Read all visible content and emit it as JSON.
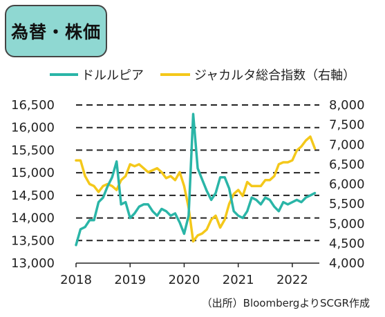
{
  "title": "為替・株価",
  "source": "（出所）BloombergよりSCGR作成",
  "colors": {
    "usdidr": "#2ab5a7",
    "jci": "#f4c81a",
    "grid": "#222222",
    "title_bg": "#8fd8d2"
  },
  "chart_data": {
    "type": "line",
    "x_ticks": [
      "2018",
      "2019",
      "2020",
      "2021",
      "2022"
    ],
    "left_axis": {
      "ylim": [
        13000,
        16500
      ],
      "ticks": [
        "13,000",
        "13,500",
        "14,000",
        "14,500",
        "15,000",
        "15,500",
        "16,000",
        "16,500"
      ]
    },
    "right_axis": {
      "ylim": [
        4000,
        8000
      ],
      "ticks": [
        "4,000",
        "4,500",
        "5,000",
        "5,500",
        "6,000",
        "6,500",
        "7,000",
        "7,500",
        "8,000"
      ]
    },
    "grid": "dashed horizontal",
    "legend": "top",
    "series": [
      {
        "name": "ドルルピア",
        "axis": "left",
        "x": [
          2018.0,
          2018.083,
          2018.167,
          2018.25,
          2018.333,
          2018.417,
          2018.5,
          2018.583,
          2018.667,
          2018.75,
          2018.833,
          2018.917,
          2019.0,
          2019.083,
          2019.167,
          2019.25,
          2019.333,
          2019.417,
          2019.5,
          2019.583,
          2019.667,
          2019.75,
          2019.833,
          2019.917,
          2020.0,
          2020.083,
          2020.167,
          2020.25,
          2020.333,
          2020.417,
          2020.5,
          2020.583,
          2020.667,
          2020.75,
          2020.833,
          2020.917,
          2021.0,
          2021.083,
          2021.167,
          2021.25,
          2021.333,
          2021.417,
          2021.5,
          2021.583,
          2021.667,
          2021.75,
          2021.833,
          2021.917,
          2022.0,
          2022.083,
          2022.167,
          2022.25,
          2022.333,
          2022.417
        ],
        "values": [
          13400,
          13750,
          13800,
          13950,
          13950,
          14350,
          14450,
          14700,
          14900,
          15250,
          14300,
          14350,
          14000,
          14100,
          14250,
          14300,
          14300,
          14150,
          14050,
          14200,
          14150,
          14050,
          14100,
          13900,
          13650,
          14050,
          16300,
          15100,
          14850,
          14600,
          14400,
          14550,
          14900,
          14900,
          14650,
          14150,
          14050,
          14000,
          14150,
          14450,
          14400,
          14300,
          14450,
          14400,
          14250,
          14150,
          14350,
          14300,
          14350,
          14400,
          14350,
          14450,
          14500,
          14550
        ]
      },
      {
        "name": "ジャカルタ総合指数（右軸）",
        "axis": "right",
        "x": [
          2018.0,
          2018.083,
          2018.167,
          2018.25,
          2018.333,
          2018.417,
          2018.5,
          2018.583,
          2018.667,
          2018.75,
          2018.833,
          2018.917,
          2019.0,
          2019.083,
          2019.167,
          2019.25,
          2019.333,
          2019.417,
          2019.5,
          2019.583,
          2019.667,
          2019.75,
          2019.833,
          2019.917,
          2020.0,
          2020.083,
          2020.167,
          2020.25,
          2020.333,
          2020.417,
          2020.5,
          2020.583,
          2020.667,
          2020.75,
          2020.833,
          2020.917,
          2021.0,
          2021.083,
          2021.167,
          2021.25,
          2021.333,
          2021.417,
          2021.5,
          2021.583,
          2021.667,
          2021.75,
          2021.833,
          2021.917,
          2022.0,
          2022.083,
          2022.167,
          2022.25,
          2022.333,
          2022.417
        ],
        "values": [
          6600,
          6600,
          6200,
          6000,
          5950,
          5800,
          5950,
          6000,
          5950,
          5850,
          6100,
          6200,
          6500,
          6450,
          6500,
          6400,
          6300,
          6350,
          6400,
          6300,
          6150,
          6200,
          6100,
          6300,
          5950,
          5400,
          4550,
          4700,
          4750,
          4850,
          5100,
          5200,
          4900,
          5100,
          5500,
          5750,
          5850,
          5700,
          6050,
          5950,
          5950,
          5950,
          6100,
          6100,
          6200,
          6500,
          6550,
          6550,
          6600,
          6850,
          6950,
          7100,
          7200,
          6900
        ]
      }
    ]
  }
}
